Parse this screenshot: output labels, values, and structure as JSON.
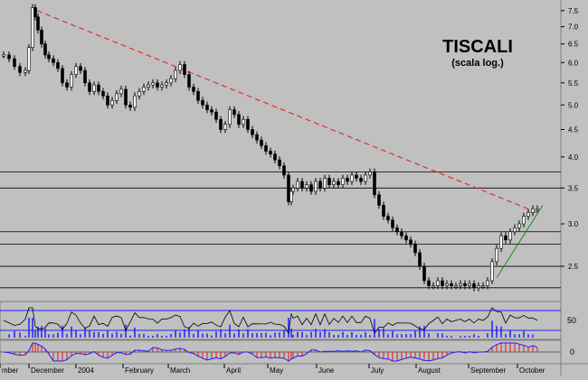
{
  "chart_data": {
    "type": "candlestick",
    "title": "TISCALI",
    "subtitle": "(scala log.)",
    "y_scale": "log",
    "y_ticks": [
      "2.5",
      "3.0",
      "3.5",
      "4.0",
      "4.5",
      "5.0",
      "5.5",
      "6.0",
      "6.5",
      "7.0",
      "7.5"
    ],
    "ylim": [
      2.2,
      7.7
    ],
    "x_labels": [
      "mber",
      "December",
      "2004",
      "February",
      "March",
      "April",
      "May",
      "June",
      "July",
      "August",
      "September",
      "October"
    ],
    "price_series": {
      "name": "",
      "x": [
        0,
        6,
        12,
        18,
        24,
        28,
        32,
        35,
        38,
        42,
        46,
        50,
        55,
        60,
        65,
        70,
        75,
        80,
        85,
        90,
        95,
        100,
        105,
        110,
        115,
        120,
        125,
        130,
        135,
        140,
        145,
        150,
        155,
        160,
        165,
        170,
        175,
        180,
        185,
        190,
        195,
        200,
        205,
        210,
        215,
        220,
        225,
        230,
        235,
        240,
        245,
        250,
        255,
        260,
        265,
        270,
        275,
        280,
        285,
        290,
        295,
        300,
        305,
        310,
        315,
        318,
        320,
        325,
        330,
        335,
        340,
        345,
        350,
        355,
        360,
        365,
        370,
        375,
        380,
        385,
        390,
        395,
        400,
        405,
        410,
        415,
        420,
        425,
        430,
        435,
        440,
        445,
        450,
        455,
        460,
        465,
        470,
        475,
        480,
        485,
        490,
        495,
        500,
        505,
        510,
        515,
        520,
        525,
        530,
        535,
        540,
        545,
        550,
        555,
        560,
        565,
        570,
        575,
        580,
        585,
        590
      ],
      "values": [
        6.2,
        6.1,
        5.9,
        5.75,
        5.8,
        6.4,
        7.6,
        7.3,
        6.9,
        6.5,
        6.2,
        6.1,
        6.0,
        5.85,
        5.5,
        5.4,
        5.7,
        5.9,
        5.8,
        5.5,
        5.3,
        5.45,
        5.3,
        5.2,
        5.0,
        5.1,
        5.25,
        5.35,
        5.0,
        4.95,
        5.2,
        5.3,
        5.4,
        5.45,
        5.5,
        5.4,
        5.45,
        5.5,
        5.6,
        5.8,
        5.95,
        5.7,
        5.4,
        5.3,
        5.1,
        5.0,
        4.9,
        4.85,
        4.7,
        4.5,
        4.6,
        4.9,
        4.8,
        4.6,
        4.7,
        4.5,
        4.4,
        4.3,
        4.2,
        4.1,
        4.05,
        3.95,
        3.85,
        3.7,
        3.3,
        3.45,
        3.5,
        3.6,
        3.5,
        3.55,
        3.45,
        3.6,
        3.5,
        3.65,
        3.55,
        3.6,
        3.55,
        3.65,
        3.6,
        3.7,
        3.65,
        3.6,
        3.7,
        3.75,
        3.4,
        3.25,
        3.1,
        3.05,
        2.95,
        2.9,
        2.85,
        2.8,
        2.75,
        2.65,
        2.5,
        2.35,
        2.3,
        2.3,
        2.35,
        2.3,
        2.32,
        2.3,
        2.3,
        2.32,
        2.3,
        2.32,
        2.28,
        2.3,
        2.3,
        2.35,
        2.55,
        2.7,
        2.85,
        2.8,
        2.9,
        2.95,
        3.0,
        3.1,
        3.15,
        3.2,
        3.2
      ]
    },
    "resistance_line": {
      "x": [
        37,
        590
      ],
      "y": [
        7.5,
        3.15
      ]
    },
    "support_line": {
      "x": [
        545,
        596
      ],
      "y": [
        2.38,
        3.25
      ]
    },
    "horizontal_levels": [
      3.75,
      3.5,
      2.9,
      2.75,
      2.5,
      2.28
    ],
    "oscillator_panel": {
      "tick_label": "50",
      "band": [
        30,
        70
      ]
    },
    "macd_panel": {
      "tick_label": "0"
    }
  }
}
